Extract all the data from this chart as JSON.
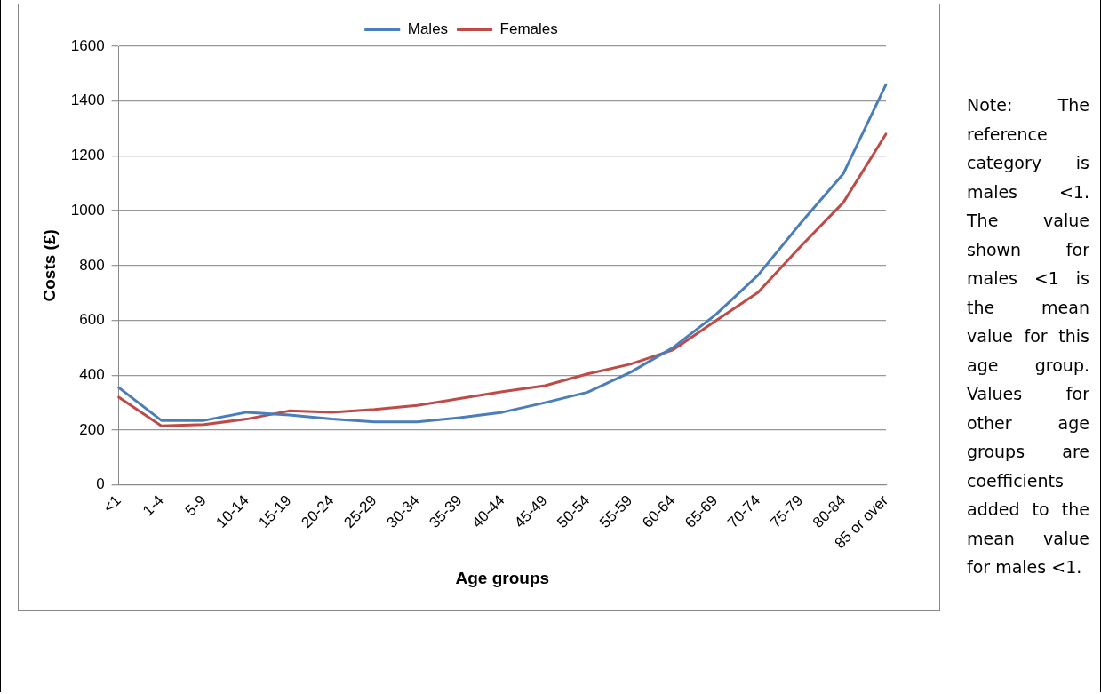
{
  "chart_data": {
    "type": "line",
    "xlabel": "Age groups",
    "ylabel": "Costs (£)",
    "categories": [
      "<1",
      "1-4",
      "5-9",
      "10-14",
      "15-19",
      "20-24",
      "25-29",
      "30-34",
      "35-39",
      "40-44",
      "45-49",
      "50-54",
      "55-59",
      "60-64",
      "65-69",
      "70-74",
      "75-79",
      "80-84",
      "85 or over"
    ],
    "series": [
      {
        "name": "Males",
        "color": "#4a7ebb",
        "values": [
          355,
          235,
          235,
          265,
          255,
          240,
          230,
          230,
          245,
          265,
          300,
          338,
          410,
          500,
          620,
          765,
          955,
          1135,
          1460
        ]
      },
      {
        "name": "Females",
        "color": "#be4b48",
        "values": [
          320,
          215,
          220,
          240,
          270,
          265,
          275,
          290,
          315,
          340,
          362,
          405,
          440,
          492,
          598,
          702,
          870,
          1030,
          1280
        ]
      }
    ],
    "ylim": [
      0,
      1600
    ],
    "yticks": [
      0,
      200,
      400,
      600,
      800,
      1000,
      1200,
      1400,
      1600
    ],
    "grid": "y",
    "legend": "top",
    "marker": "none",
    "line_style": "solid",
    "annotations": [
      "Note: The reference category is males <1. The value shown for males <1 is the mean value for this age group. Values for other age groups are coefficients added to the mean value for males <1."
    ]
  }
}
